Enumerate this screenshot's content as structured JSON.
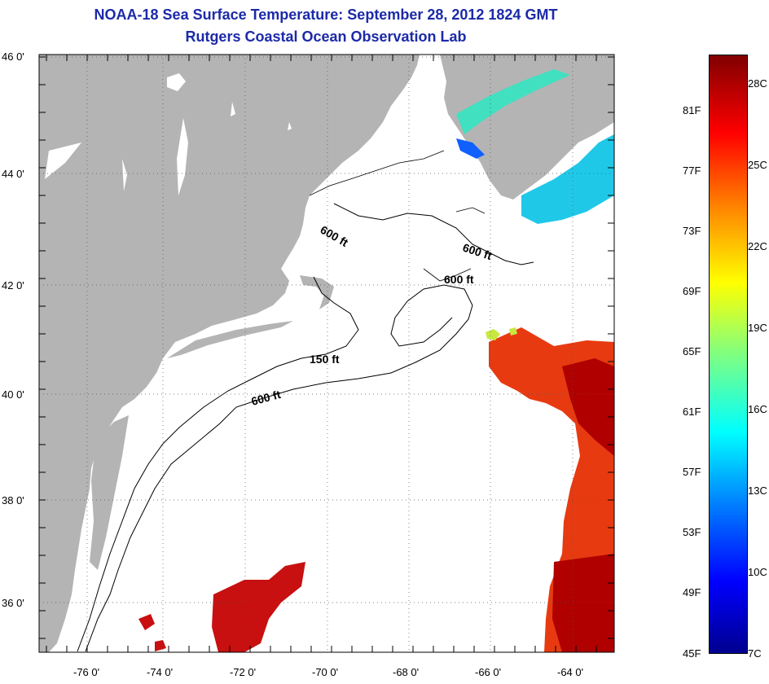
{
  "header": {
    "title": "NOAA-18 Sea Surface Temperature:  September 28, 2012 1824 GMT",
    "subtitle": "Rutgers Coastal Ocean Observation Lab"
  },
  "axes": {
    "lat_labels": [
      "46 0'",
      "44 0'",
      "42 0'",
      "40 0'",
      "38 0'",
      "36 0'"
    ],
    "lon_labels": [
      "-76 0'",
      "-74 0'",
      "-72 0'",
      "-70 0'",
      "-68 0'",
      "-66 0'",
      "-64 0'"
    ],
    "lat_range": [
      35,
      46
    ],
    "lon_range": [
      -77,
      -63
    ],
    "grid": "dotted"
  },
  "contours": {
    "labels": [
      "600 ft",
      "600 ft",
      "600 ft",
      "150 ft",
      "600 ft"
    ]
  },
  "colorbar": {
    "fahrenheit_labels": [
      "81F",
      "77F",
      "73F",
      "69F",
      "65F",
      "61F",
      "57F",
      "53F",
      "49F",
      "45F"
    ],
    "celsius_labels": [
      "28C",
      "25C",
      "22C",
      "19C",
      "16C",
      "13C",
      "10C",
      "7C"
    ],
    "colors": [
      "#00008f",
      "#0000ff",
      "#0080ff",
      "#00ffff",
      "#80ff80",
      "#ffff00",
      "#ff8000",
      "#ff0000",
      "#800000"
    ]
  },
  "colors": {
    "title": "#1c2aa8",
    "land": "#b4b4b4",
    "water": "#ffffff"
  }
}
